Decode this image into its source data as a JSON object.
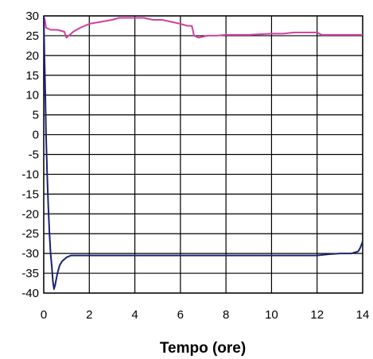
{
  "chart_data": {
    "type": "line",
    "title": "",
    "xlabel": "Tempo (ore)",
    "ylabel": "",
    "xlim": [
      0,
      14
    ],
    "ylim": [
      -40,
      30
    ],
    "x_ticks": [
      0,
      2,
      4,
      6,
      8,
      10,
      12,
      14
    ],
    "y_ticks": [
      30,
      25,
      20,
      15,
      10,
      5,
      0,
      -5,
      -10,
      -15,
      -20,
      -25,
      -30,
      -35,
      -40
    ],
    "grid": true,
    "legend": "none",
    "series": [
      {
        "color": "#d040a0",
        "x": [
          0,
          0.05,
          0.1,
          0.3,
          0.6,
          0.9,
          1.0,
          1.1,
          1.3,
          1.6,
          2.0,
          2.5,
          3.0,
          3.3,
          3.6,
          4.0,
          4.4,
          4.8,
          5.2,
          5.6,
          6.0,
          6.3,
          6.5,
          6.6,
          6.8,
          7.2,
          7.6,
          8.0,
          9.0,
          10.0,
          10.5,
          11.0,
          11.5,
          12.0,
          12.2,
          12.5,
          13.0,
          13.5,
          14.0
        ],
        "values": [
          30,
          29,
          27,
          26.5,
          26.5,
          26,
          24.5,
          25,
          26,
          27,
          28,
          28.5,
          29,
          29.5,
          29.5,
          29.5,
          29.5,
          29,
          29,
          28.5,
          28,
          27.5,
          27.5,
          25,
          24.5,
          25,
          25,
          25.2,
          25.2,
          25.5,
          25.5,
          25.8,
          25.8,
          25.8,
          25.2,
          25.2,
          25.2,
          25.2,
          25.2
        ]
      },
      {
        "color": "#1a2370",
        "x": [
          0,
          0.03,
          0.07,
          0.1,
          0.15,
          0.2,
          0.25,
          0.3,
          0.35,
          0.4,
          0.45,
          0.5,
          0.6,
          0.7,
          0.8,
          1.0,
          1.2,
          1.5,
          2.0,
          3.0,
          4.0,
          6.0,
          8.0,
          10.0,
          12.0,
          12.5,
          13.0,
          13.5,
          13.8,
          13.9,
          14.0
        ],
        "values": [
          30,
          20,
          10,
          0,
          -10,
          -18,
          -25,
          -30,
          -33,
          -37,
          -39,
          -38,
          -35,
          -33,
          -32,
          -31,
          -30.5,
          -30.5,
          -30.5,
          -30.5,
          -30.5,
          -30.5,
          -30.5,
          -30.5,
          -30.5,
          -30.2,
          -30,
          -30,
          -29.5,
          -28.5,
          -27
        ]
      }
    ]
  }
}
